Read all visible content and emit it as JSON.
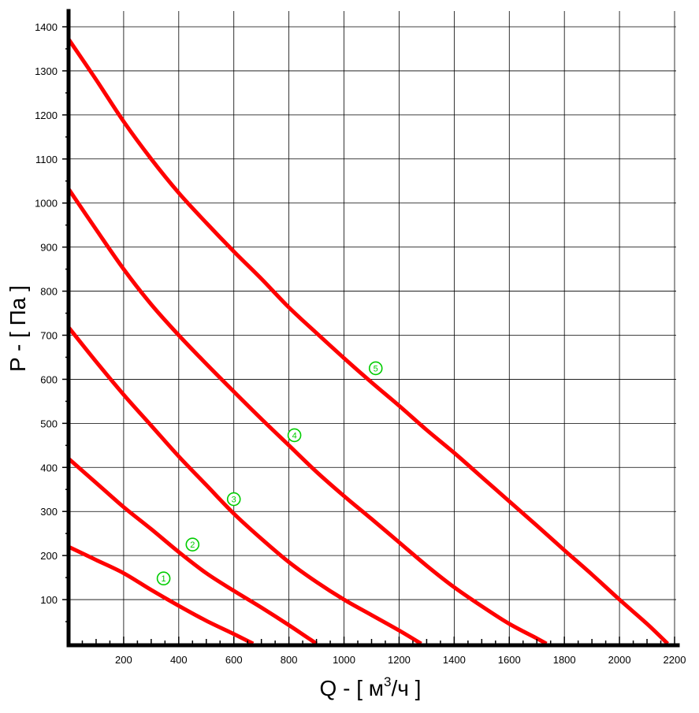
{
  "chart_data": {
    "type": "line",
    "title": "",
    "xlabel_prefix": "Q - [ м",
    "xlabel_superscript": "3",
    "xlabel_suffix": "/ч ]",
    "ylabel": "P - [ Па ]",
    "xlim": [
      0,
      2200
    ],
    "ylim": [
      0,
      1400
    ],
    "grid": true,
    "x_major_ticks": [
      200,
      400,
      600,
      800,
      1000,
      1200,
      1400,
      1600,
      1800,
      2000,
      2200
    ],
    "y_major_ticks": [
      100,
      200,
      300,
      400,
      500,
      600,
      700,
      800,
      900,
      1000,
      1100,
      1200,
      1300,
      1400
    ],
    "x_tick_labels": [
      "200",
      "400",
      "600",
      "800",
      "1000",
      "1200",
      "1400",
      "1600",
      "1800",
      "2000",
      "2200"
    ],
    "y_tick_labels": [
      "100",
      "200",
      "300",
      "400",
      "500",
      "600",
      "700",
      "800",
      "900",
      "1000",
      "1100",
      "1200",
      "1300",
      "1400"
    ],
    "series": [
      {
        "label": "1",
        "color": "#ff0000",
        "label_at": [
          345,
          148
        ],
        "points": [
          [
            0,
            220
          ],
          [
            100,
            190
          ],
          [
            200,
            160
          ],
          [
            300,
            122
          ],
          [
            400,
            86
          ],
          [
            500,
            52
          ],
          [
            600,
            22
          ],
          [
            670,
            0
          ]
        ]
      },
      {
        "label": "2",
        "color": "#ff0000",
        "label_at": [
          450,
          225
        ],
        "points": [
          [
            0,
            420
          ],
          [
            100,
            365
          ],
          [
            200,
            310
          ],
          [
            300,
            260
          ],
          [
            400,
            208
          ],
          [
            500,
            160
          ],
          [
            600,
            120
          ],
          [
            700,
            82
          ],
          [
            800,
            42
          ],
          [
            900,
            0
          ]
        ]
      },
      {
        "label": "3",
        "color": "#ff0000",
        "label_at": [
          600,
          328
        ],
        "points": [
          [
            0,
            718
          ],
          [
            100,
            640
          ],
          [
            200,
            565
          ],
          [
            300,
            495
          ],
          [
            400,
            425
          ],
          [
            500,
            360
          ],
          [
            600,
            295
          ],
          [
            700,
            238
          ],
          [
            800,
            185
          ],
          [
            900,
            140
          ],
          [
            1000,
            100
          ],
          [
            1100,
            65
          ],
          [
            1200,
            30
          ],
          [
            1280,
            0
          ]
        ]
      },
      {
        "label": "4",
        "color": "#ff0000",
        "label_at": [
          820,
          473
        ],
        "points": [
          [
            0,
            1032
          ],
          [
            100,
            940
          ],
          [
            200,
            850
          ],
          [
            300,
            770
          ],
          [
            400,
            700
          ],
          [
            500,
            635
          ],
          [
            600,
            572
          ],
          [
            700,
            510
          ],
          [
            800,
            450
          ],
          [
            900,
            390
          ],
          [
            1000,
            335
          ],
          [
            1100,
            283
          ],
          [
            1200,
            230
          ],
          [
            1300,
            177
          ],
          [
            1400,
            128
          ],
          [
            1500,
            85
          ],
          [
            1600,
            45
          ],
          [
            1700,
            12
          ],
          [
            1735,
            0
          ]
        ]
      },
      {
        "label": "5",
        "color": "#ff0000",
        "label_at": [
          1115,
          625
        ],
        "points": [
          [
            0,
            1372
          ],
          [
            100,
            1280
          ],
          [
            200,
            1185
          ],
          [
            300,
            1100
          ],
          [
            400,
            1023
          ],
          [
            500,
            955
          ],
          [
            600,
            890
          ],
          [
            700,
            828
          ],
          [
            800,
            763
          ],
          [
            900,
            705
          ],
          [
            1000,
            648
          ],
          [
            1100,
            593
          ],
          [
            1200,
            540
          ],
          [
            1300,
            485
          ],
          [
            1400,
            433
          ],
          [
            1500,
            378
          ],
          [
            1600,
            323
          ],
          [
            1700,
            268
          ],
          [
            1800,
            212
          ],
          [
            1900,
            157
          ],
          [
            2000,
            100
          ],
          [
            2100,
            45
          ],
          [
            2175,
            0
          ]
        ]
      }
    ],
    "label_marker_color": "#00cc00"
  }
}
